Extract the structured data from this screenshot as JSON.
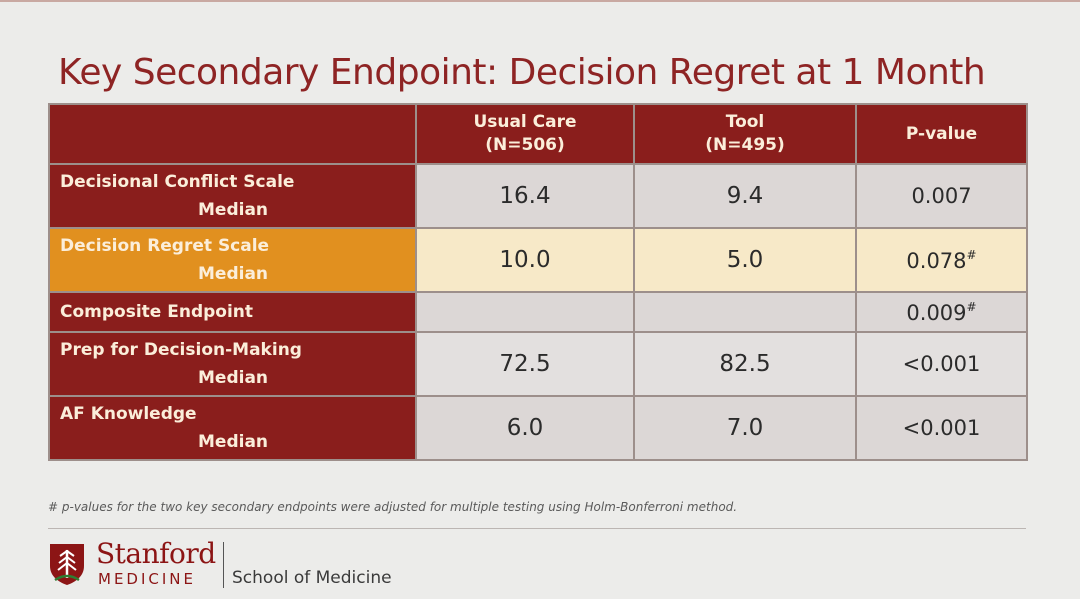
{
  "slide": {
    "title": "Key Secondary Endpoint: Decision Regret at 1 Month",
    "footnote": "# p-values for the two key secondary endpoints were adjusted for multiple testing using Holm-Bonferroni method."
  },
  "table": {
    "columns": [
      {
        "line1": "",
        "line2": ""
      },
      {
        "line1": "Usual Care",
        "line2": "(N=506)"
      },
      {
        "line1": "Tool",
        "line2": "(N=495)"
      },
      {
        "line1": "P-value",
        "line2": ""
      }
    ],
    "rows": [
      {
        "label": "Decisional Conflict Scale",
        "sublabel": "Median",
        "usual_care": "16.4",
        "tool": "9.4",
        "p_value": "0.007",
        "mark": ""
      },
      {
        "label": "Decision Regret Scale",
        "sublabel": "Median",
        "usual_care": "10.0",
        "tool": "5.0",
        "p_value": "0.078",
        "mark": "#"
      },
      {
        "label": "Composite Endpoint",
        "sublabel": "",
        "usual_care": "",
        "tool": "",
        "p_value": "0.009",
        "mark": "#"
      },
      {
        "label": "Prep for Decision-Making",
        "sublabel": "Median",
        "usual_care": "72.5",
        "tool": "82.5",
        "p_value": "<0.001",
        "mark": ""
      },
      {
        "label": "AF Knowledge",
        "sublabel": "Median",
        "usual_care": "6.0",
        "tool": "7.0",
        "p_value": "<0.001",
        "mark": ""
      }
    ],
    "highlight_color": "#e1901f",
    "header_color": "#8a1e1c"
  },
  "logo": {
    "wordmark": "Stanford",
    "unit": "MEDICINE",
    "school": "School of Medicine"
  }
}
